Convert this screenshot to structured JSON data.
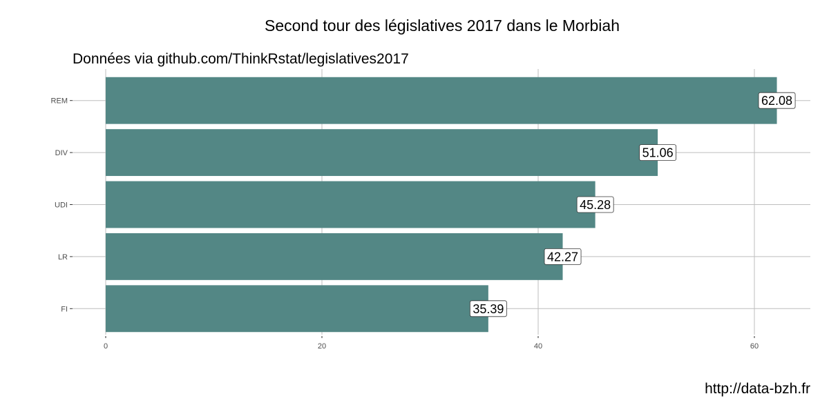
{
  "chart_data": {
    "type": "bar",
    "orientation": "horizontal",
    "title": "Second tour des législatives 2017 dans le Morbiah",
    "subtitle": "Données via github.com/ThinkRstat/legislatives2017",
    "caption": "http://data-bzh.fr",
    "xlabel": "",
    "ylabel": "",
    "categories": [
      "REM",
      "DIV",
      "UDI",
      "LR",
      "FI"
    ],
    "values": [
      62.08,
      51.06,
      45.28,
      42.27,
      35.39
    ],
    "value_labels": [
      "62.08",
      "51.06",
      "45.28",
      "42.27",
      "35.39"
    ],
    "x_ticks": [
      0,
      20,
      40,
      60
    ],
    "x_tick_labels": [
      "0",
      "20",
      "40",
      "60"
    ],
    "xlim": [
      0,
      65
    ],
    "grid": true,
    "legend": "none",
    "colors": {
      "bar": "#538785",
      "grid": "#bebebe",
      "axis_text": "#4d4d4d",
      "label_border": "#333333"
    }
  }
}
